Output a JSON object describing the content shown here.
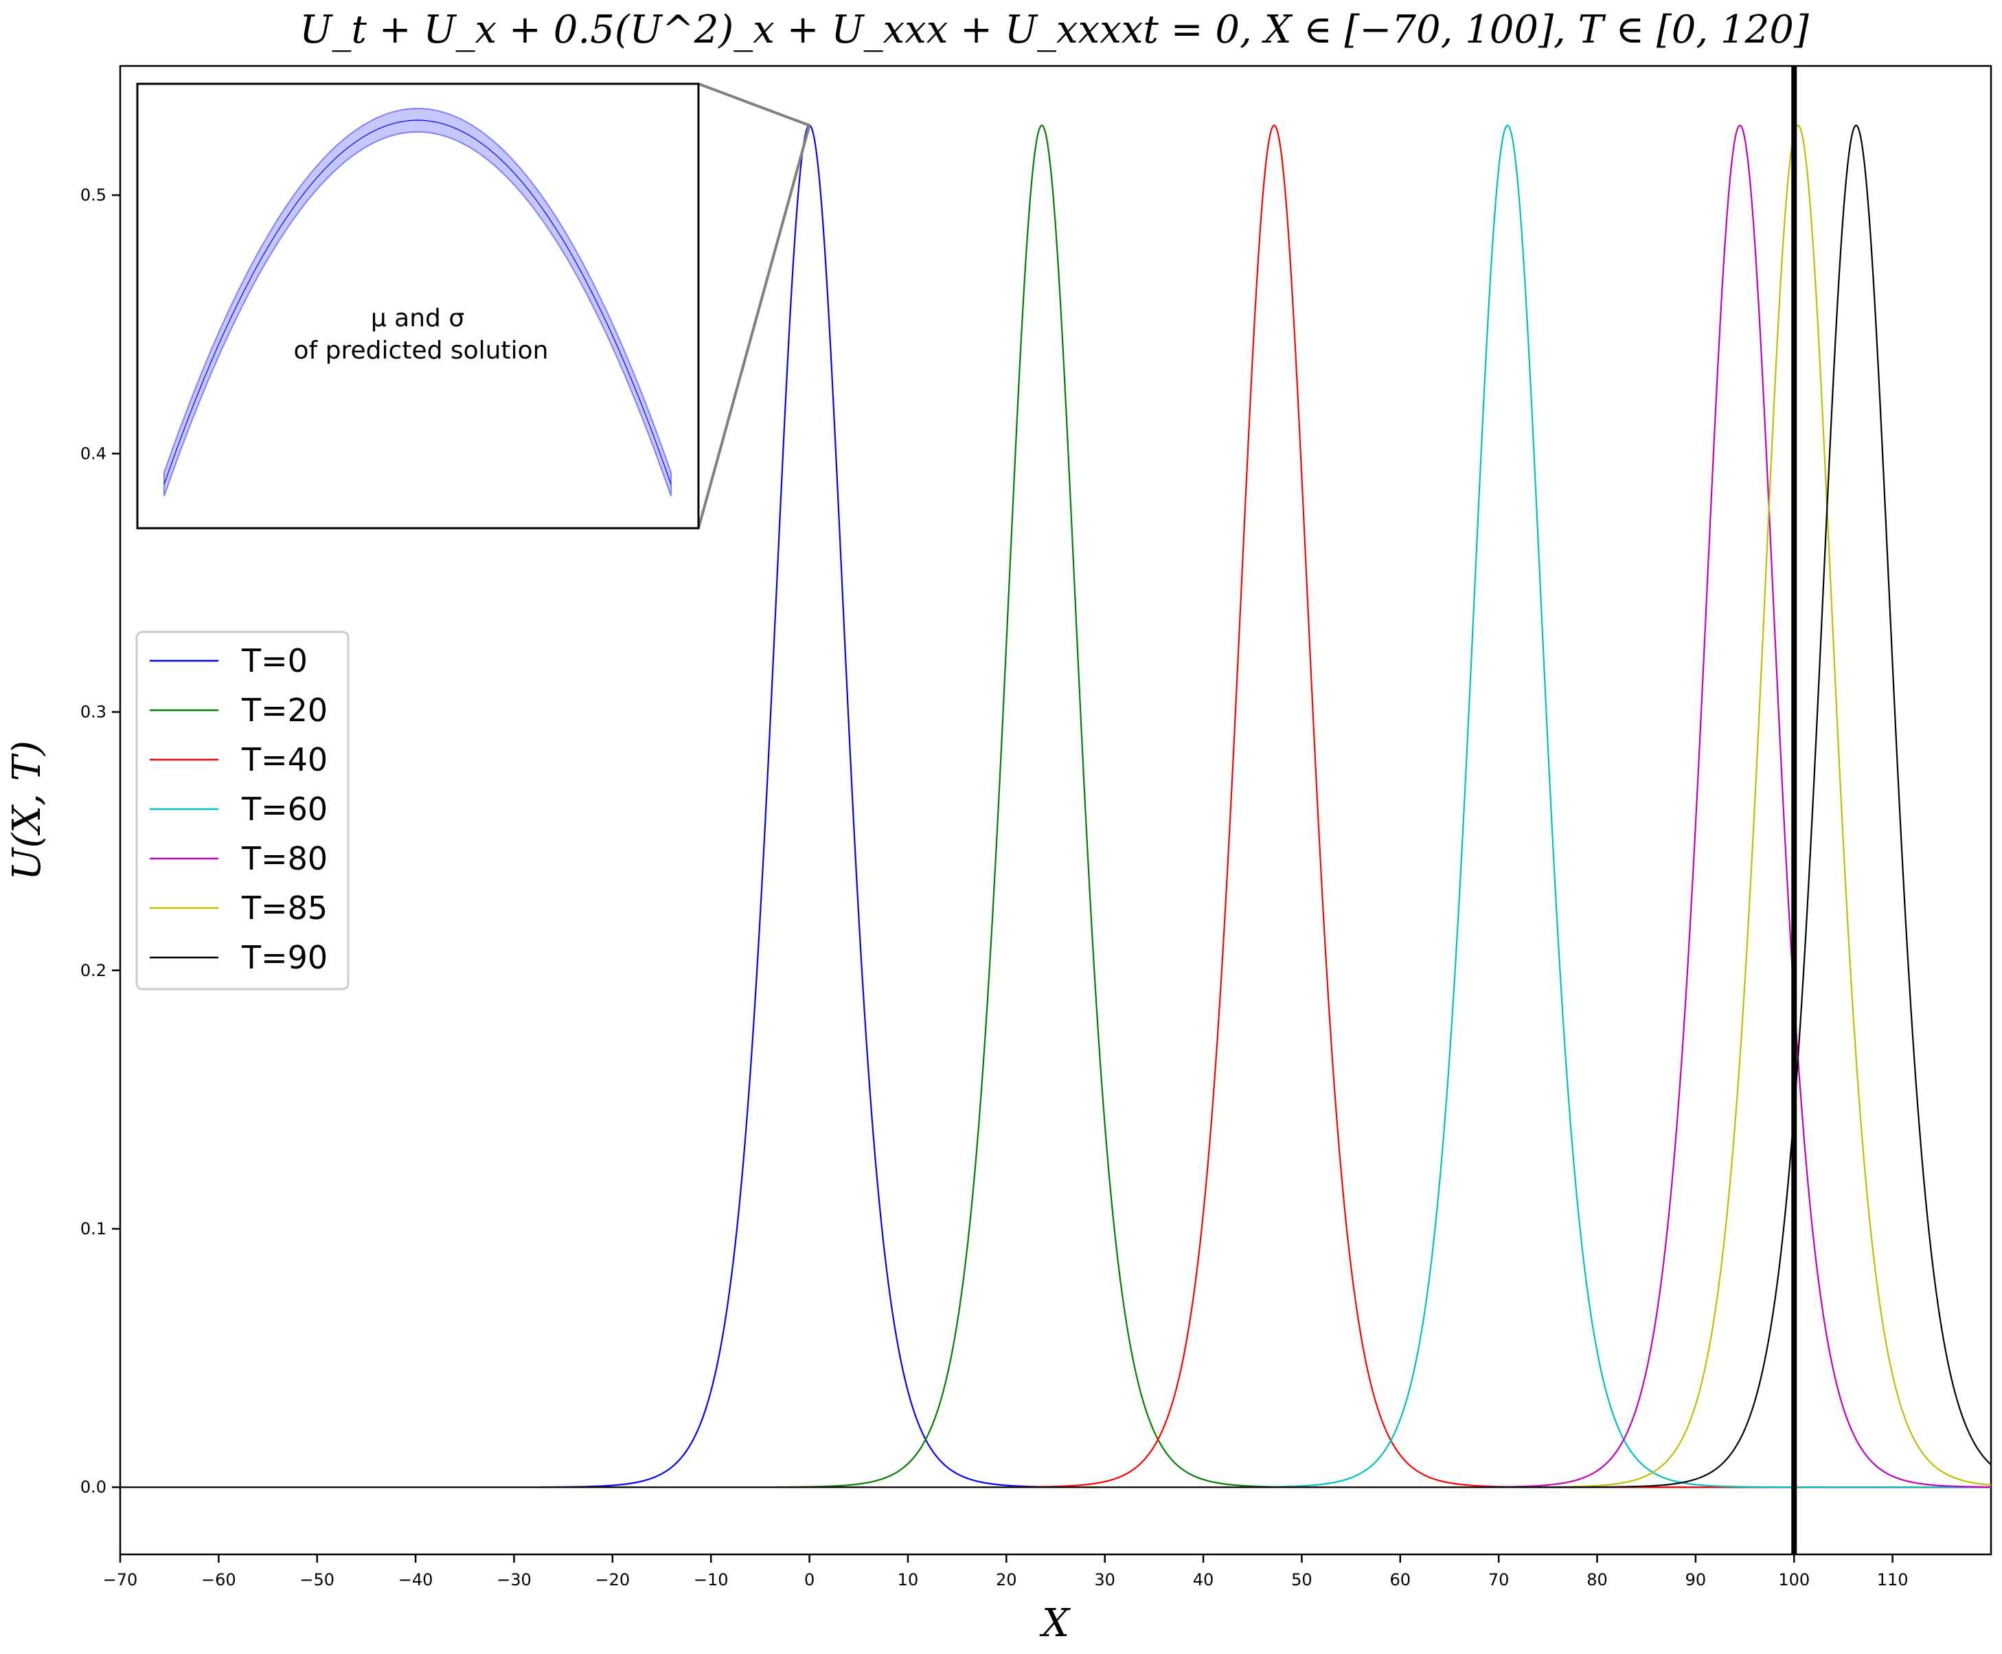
{
  "chart_data": {
    "type": "line",
    "title": "U_t + U_x + 0.5(U^2)_x + U_xxx + U_xxxxt = 0,    X ∈ [−70, 100],    T ∈ [0, 120]",
    "xlabel": "X",
    "ylabel": "U(X, T)",
    "xlim": [
      -70,
      120
    ],
    "ylim": [
      -0.026,
      0.55
    ],
    "x_ticks": [
      -70,
      -60,
      -50,
      -40,
      -30,
      -20,
      -10,
      0,
      10,
      20,
      30,
      40,
      50,
      60,
      70,
      80,
      90,
      100,
      110
    ],
    "x_tick_labels": [
      "−70",
      "−60",
      "−50",
      "−40",
      "−30",
      "−20",
      "−10",
      "0",
      "10",
      "20",
      "30",
      "40",
      "50",
      "60",
      "70",
      "80",
      "90",
      "100",
      "110"
    ],
    "y_ticks": [
      0.0,
      0.1,
      0.2,
      0.3,
      0.4,
      0.5
    ],
    "y_tick_labels": [
      "0.0",
      "0.1",
      "0.2",
      "0.3",
      "0.4",
      "0.5"
    ],
    "grid": false,
    "legend_position": "middle-left",
    "vertical_line": {
      "x": 100,
      "color": "#000000"
    },
    "baseline": {
      "y": 0,
      "color": "#000000"
    },
    "peak_amplitude": 0.527,
    "width_parameter": 5.0,
    "series": [
      {
        "name": "T=0",
        "peak_x": 0.0,
        "color": "#0000ff"
      },
      {
        "name": "T=20",
        "peak_x": 23.6,
        "color": "#008000"
      },
      {
        "name": "T=40",
        "peak_x": 47.2,
        "color": "#ff0000"
      },
      {
        "name": "T=60",
        "peak_x": 70.9,
        "color": "#00bfbf"
      },
      {
        "name": "T=80",
        "peak_x": 94.5,
        "color": "#bf00bf"
      },
      {
        "name": "T=85",
        "peak_x": 100.4,
        "color": "#bfbf00"
      },
      {
        "name": "T=90",
        "peak_x": 106.3,
        "color": "#000000"
      }
    ],
    "inset": {
      "label_line1": "μ and σ",
      "label_line2": "of predicted solution",
      "band_color": "#9999ff",
      "line_color": "#0000ff"
    }
  }
}
